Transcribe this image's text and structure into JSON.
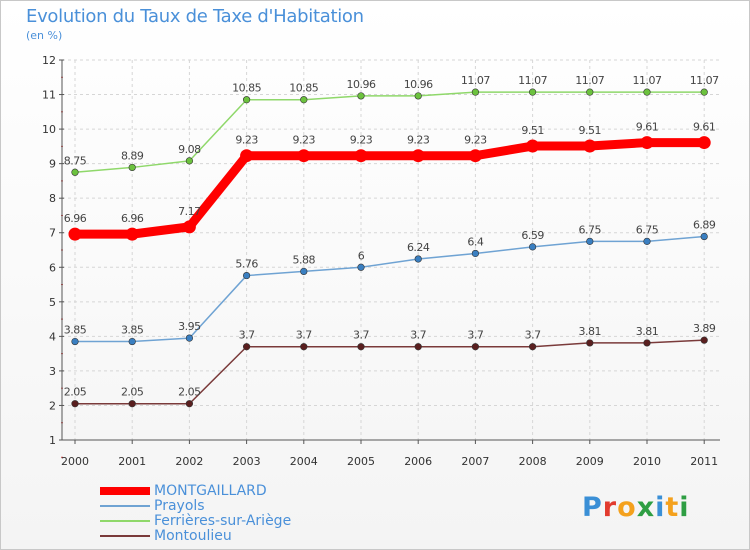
{
  "page": {
    "title": "Evolution du Taux de Taxe d'Habitation",
    "subtitle": "(en %)"
  },
  "logo": {
    "letters": [
      "P",
      "r",
      "o",
      "x",
      "i",
      "t",
      "i"
    ],
    "colors": [
      "#3a8fd6",
      "#e23b2e",
      "#f4a11d",
      "#2e9e43",
      "#3a8fd6",
      "#f4a11d",
      "#2e9e43"
    ]
  },
  "chart_data": {
    "type": "line",
    "x": [
      2000,
      2001,
      2002,
      2003,
      2004,
      2005,
      2006,
      2007,
      2008,
      2009,
      2010,
      2011
    ],
    "ylim": [
      1,
      12
    ],
    "yticks": [
      1,
      2,
      3,
      4,
      5,
      6,
      7,
      8,
      9,
      10,
      11,
      12
    ],
    "legend_position": "bottom-left",
    "series": [
      {
        "name": "MONTGAILLARD",
        "color": "#ff0000",
        "marker_color": "#ff0000",
        "emphasis": "thick",
        "values": [
          6.96,
          6.96,
          7.17,
          9.23,
          9.23,
          9.23,
          9.23,
          9.23,
          9.51,
          9.51,
          9.61,
          9.61
        ],
        "labels": [
          "6.96",
          "6.96",
          "7.17",
          "9.23",
          "9.23",
          "9.23",
          "9.23",
          "9.23",
          "9.51",
          "9.51",
          "9.61",
          "9.61"
        ]
      },
      {
        "name": "Prayols",
        "color": "#6fa3d3",
        "marker_color": "#3a7fc1",
        "emphasis": "normal",
        "values": [
          3.85,
          3.85,
          3.95,
          5.76,
          5.88,
          6,
          6.24,
          6.4,
          6.59,
          6.75,
          6.75,
          6.89
        ],
        "labels": [
          "3.85",
          "3.85",
          "3.95",
          "5.76",
          "5.88",
          "6",
          "6.24",
          "6.4",
          "6.59",
          "6.75",
          "6.75",
          "6.89"
        ]
      },
      {
        "name": "Ferrières-sur-Ariège",
        "color": "#8fd86a",
        "marker_color": "#6cc23e",
        "emphasis": "normal",
        "values": [
          8.75,
          8.89,
          9.08,
          10.85,
          10.85,
          10.96,
          10.96,
          11.07,
          11.07,
          11.07,
          11.07,
          11.07
        ],
        "labels": [
          "8.75",
          "8.89",
          "9.08",
          "10.85",
          "10.85",
          "10.96",
          "10.96",
          "11.07",
          "11.07",
          "11.07",
          "11.07",
          "11.07"
        ]
      },
      {
        "name": "Montoulieu",
        "color": "#7a3a3a",
        "marker_color": "#5a1f1f",
        "emphasis": "normal",
        "values": [
          2.05,
          2.05,
          2.05,
          3.7,
          3.7,
          3.7,
          3.7,
          3.7,
          3.7,
          3.81,
          3.81,
          3.89
        ],
        "labels": [
          "2.05",
          "2.05",
          "2.05",
          "3.7",
          "3.7",
          "3.7",
          "3.7",
          "3.7",
          "3.7",
          "3.81",
          "3.81",
          "3.89"
        ]
      }
    ]
  }
}
